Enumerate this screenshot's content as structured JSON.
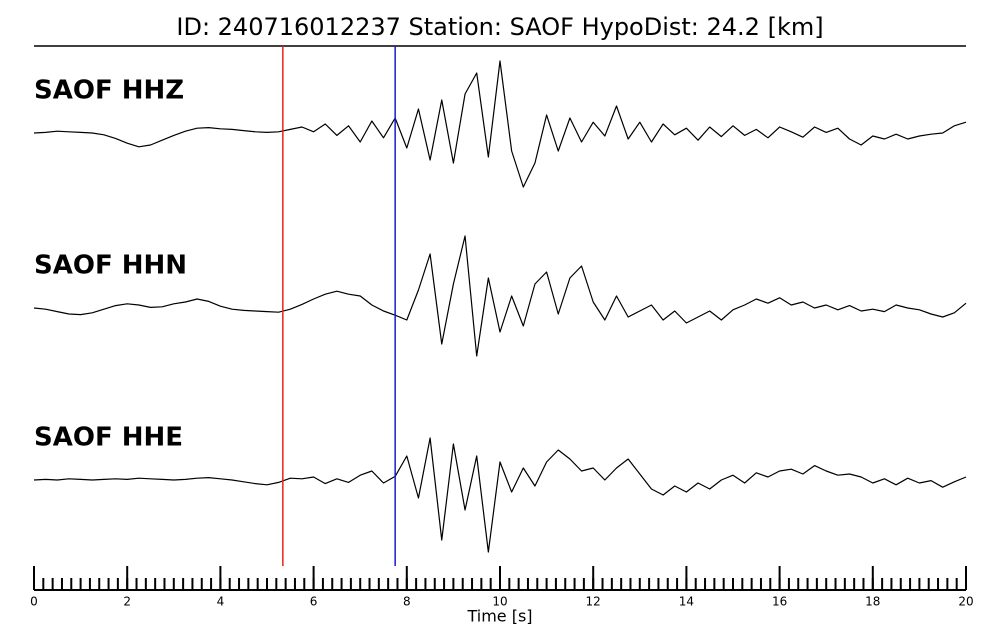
{
  "chart_data": {
    "type": "waveform",
    "title": "ID: 240716012237   Station: SAOF   HypoDist:    24.2 [km]",
    "xlabel": "Time [s]",
    "xlim": [
      0,
      20
    ],
    "xticks": [
      0,
      2,
      4,
      6,
      8,
      10,
      12,
      14,
      16,
      18,
      20
    ],
    "xminor_step": 0.2,
    "label_color": "#4e9a06",
    "trace_color": "#000000",
    "picks": [
      {
        "time": 5.34,
        "color": "#e8221c"
      },
      {
        "time": 7.75,
        "color": "#1a1ad0"
      }
    ],
    "x": [
      0,
      0.25,
      0.5,
      0.75,
      1,
      1.25,
      1.5,
      1.75,
      2,
      2.25,
      2.5,
      2.75,
      3,
      3.25,
      3.5,
      3.75,
      4,
      4.25,
      4.5,
      4.75,
      5,
      5.25,
      5.5,
      5.75,
      6,
      6.25,
      6.5,
      6.75,
      7,
      7.25,
      7.5,
      7.75,
      8,
      8.25,
      8.5,
      8.75,
      9,
      9.25,
      9.5,
      9.75,
      10,
      10.25,
      10.5,
      10.75,
      11,
      11.25,
      11.5,
      11.75,
      12,
      12.25,
      12.5,
      12.75,
      13,
      13.25,
      13.5,
      13.75,
      14,
      14.25,
      14.5,
      14.75,
      15,
      15.25,
      15.5,
      15.75,
      16,
      16.25,
      16.5,
      16.75,
      17,
      17.25,
      17.5,
      17.75,
      18,
      18.25,
      18.5,
      18.75,
      19,
      19.25,
      19.5,
      19.75,
      20
    ],
    "series": [
      {
        "name": "SAOF HHZ",
        "values": [
          0,
          0.1,
          0.3,
          0.2,
          0.1,
          0,
          -0.3,
          -0.9,
          -1.7,
          -2.3,
          -2,
          -1.2,
          -0.4,
          0.3,
          0.8,
          0.9,
          0.7,
          0.6,
          0.4,
          0.2,
          0.1,
          0.2,
          0.6,
          1,
          0.2,
          1.5,
          -0.4,
          1.2,
          -1.5,
          2,
          -0.8,
          2.5,
          -2.5,
          4,
          -4.5,
          5.5,
          -5,
          6.5,
          10,
          -4,
          12,
          -3,
          -9,
          -5,
          3,
          -3,
          2.5,
          -1.5,
          1.8,
          -0.5,
          4.5,
          -1,
          1.8,
          -1.5,
          1.5,
          -0.3,
          0.8,
          -1.2,
          1,
          -0.6,
          1.2,
          -0.4,
          0.6,
          -0.8,
          1,
          0.2,
          -0.7,
          1,
          0.1,
          0.8,
          -1,
          -2,
          -0.5,
          -1,
          -0.2,
          -1,
          -0.5,
          -0.2,
          0,
          1.2,
          1.8
        ]
      },
      {
        "name": "SAOF HHN",
        "values": [
          0,
          -0.2,
          -0.6,
          -1,
          -1.1,
          -0.8,
          -0.2,
          0.4,
          0.7,
          0.5,
          0.1,
          0.2,
          0.7,
          1,
          1.5,
          1.1,
          0.3,
          -0.2,
          -0.4,
          -0.5,
          -0.6,
          -0.7,
          -0.2,
          0.6,
          1.5,
          2.3,
          2.8,
          2.3,
          2,
          0.5,
          -0.5,
          -1.2,
          -2,
          3,
          9,
          -6,
          4,
          12,
          -8,
          5,
          -4,
          2,
          -3,
          4,
          6,
          -1,
          5,
          7,
          1,
          -2,
          2,
          -1.5,
          -0.5,
          0.5,
          -2,
          -0.5,
          -2.5,
          -1.5,
          -0.5,
          -2,
          -0.3,
          0.5,
          1.5,
          0.8,
          1.7,
          0.5,
          1,
          0,
          0.5,
          -0.3,
          0.4,
          -0.5,
          -0.2,
          -0.6,
          0.5,
          0,
          -0.3,
          -1,
          -1.5,
          -0.8,
          0.8
        ]
      },
      {
        "name": "SAOF HHE",
        "values": [
          0,
          0.1,
          0,
          0.2,
          0.1,
          0,
          0.1,
          0.2,
          0.1,
          0.3,
          0.2,
          0.1,
          0,
          0.1,
          0.3,
          0.4,
          0.2,
          0,
          -0.3,
          -0.6,
          -0.8,
          -0.4,
          0.3,
          0.2,
          0.5,
          -0.6,
          0.2,
          -0.4,
          0.8,
          1.5,
          -0.5,
          0.6,
          4,
          -3,
          7,
          -10,
          6,
          -5,
          4,
          -12,
          3,
          -2,
          2,
          -1,
          3,
          5,
          3.5,
          1.5,
          2,
          0,
          2,
          3.5,
          1,
          -1.5,
          -2.5,
          -1,
          -2,
          -0.5,
          -1.5,
          0,
          0.8,
          -0.5,
          1.2,
          0.5,
          1.5,
          1.8,
          1,
          2.4,
          1.5,
          0.8,
          1,
          0.5,
          -0.5,
          0.2,
          -0.8,
          0.3,
          -0.5,
          -0.1,
          -1.2,
          -0.3,
          0.5
        ]
      }
    ]
  }
}
